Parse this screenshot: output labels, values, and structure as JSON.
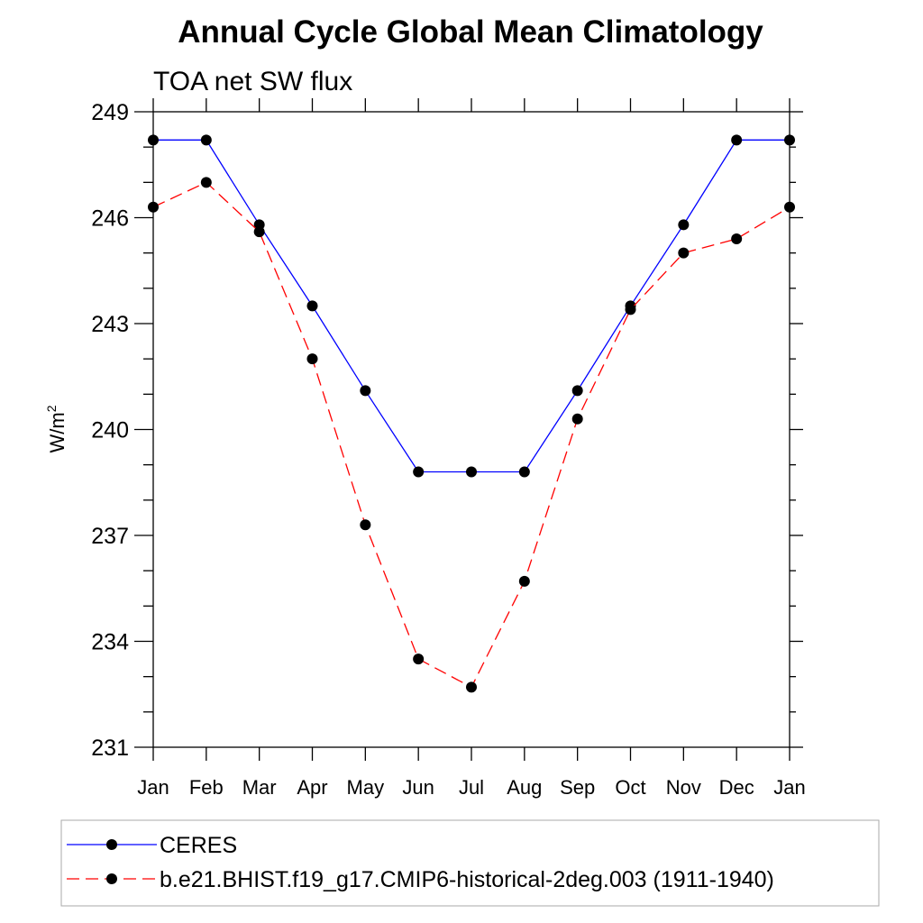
{
  "chart_data": {
    "type": "line",
    "title": "Annual Cycle Global Mean Climatology",
    "subtitle": "TOA net SW flux",
    "ylabel": "W/m",
    "ylabel_superscript": "2",
    "xlabel": "",
    "ylim": [
      231,
      249
    ],
    "yticks": [
      231,
      234,
      237,
      240,
      243,
      246,
      249
    ],
    "categories": [
      "Jan",
      "Feb",
      "Mar",
      "Apr",
      "May",
      "Jun",
      "Jul",
      "Aug",
      "Sep",
      "Oct",
      "Nov",
      "Dec",
      "Jan"
    ],
    "grid": false,
    "legend": "bottom",
    "series": [
      {
        "name": "CERES",
        "color": "#0000ff",
        "dash": "solid",
        "marker": "filled-circle",
        "values": [
          248.2,
          248.2,
          245.8,
          243.5,
          241.1,
          238.8,
          238.8,
          238.8,
          241.1,
          243.5,
          245.8,
          248.2,
          248.2
        ]
      },
      {
        "name": "b.e21.BHIST.f19_g17.CMIP6-historical-2deg.003 (1911-1940)",
        "color": "#ff0000",
        "dash": "dashed",
        "marker": "filled-circle",
        "values": [
          246.3,
          247.0,
          245.6,
          242.0,
          237.3,
          233.5,
          232.7,
          235.7,
          240.3,
          243.4,
          245.0,
          245.4,
          246.3
        ]
      }
    ]
  }
}
